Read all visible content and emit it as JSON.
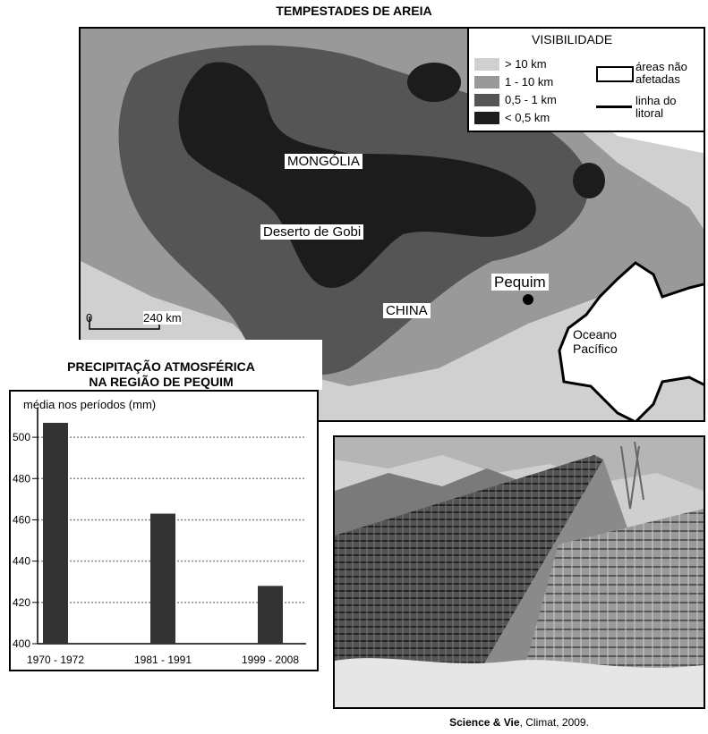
{
  "map": {
    "title": "TEMPESTADES DE AREIA",
    "legend": {
      "title": "VISIBILIDADE",
      "items": [
        {
          "label": "> 10 km",
          "color": "#d0d0d0"
        },
        {
          "label": "1 - 10 km",
          "color": "#999999"
        },
        {
          "label": "0,5 - 1 km",
          "color": "#555555"
        },
        {
          "label": "< 0,5 km",
          "color": "#1c1c1c"
        }
      ],
      "unaffected_label_1": "áreas não",
      "unaffected_label_2": "afetadas",
      "coast_label_1": "linha do",
      "coast_label_2": "litoral"
    },
    "labels": {
      "mongolia": "MONGÓLIA",
      "gobi": "Deserto de Gobi",
      "china": "CHINA",
      "beijing": "Pequim",
      "ocean_1": "Oceano",
      "ocean_2": "Pacífico"
    },
    "scale": {
      "start": "0",
      "end": "240 km"
    }
  },
  "chart_data": {
    "type": "bar",
    "title_line1": "PRECIPITAÇÃO ATMOSFÉRICA",
    "title_line2": "NA REGIÃO DE PEQUIM",
    "ylabel": "média nos períodos (mm)",
    "categories": [
      "1970 - 1972",
      "1981 - 1991",
      "1999 - 2008"
    ],
    "values": [
      507,
      463,
      428
    ],
    "ylim": [
      400,
      510
    ],
    "yticks": [
      400,
      420,
      440,
      460,
      480,
      500
    ],
    "grid": true,
    "bar_color": "#333333"
  },
  "photo": {
    "credit_bold": "Science & Vie",
    "credit_rest": ", Climat, 2009."
  }
}
